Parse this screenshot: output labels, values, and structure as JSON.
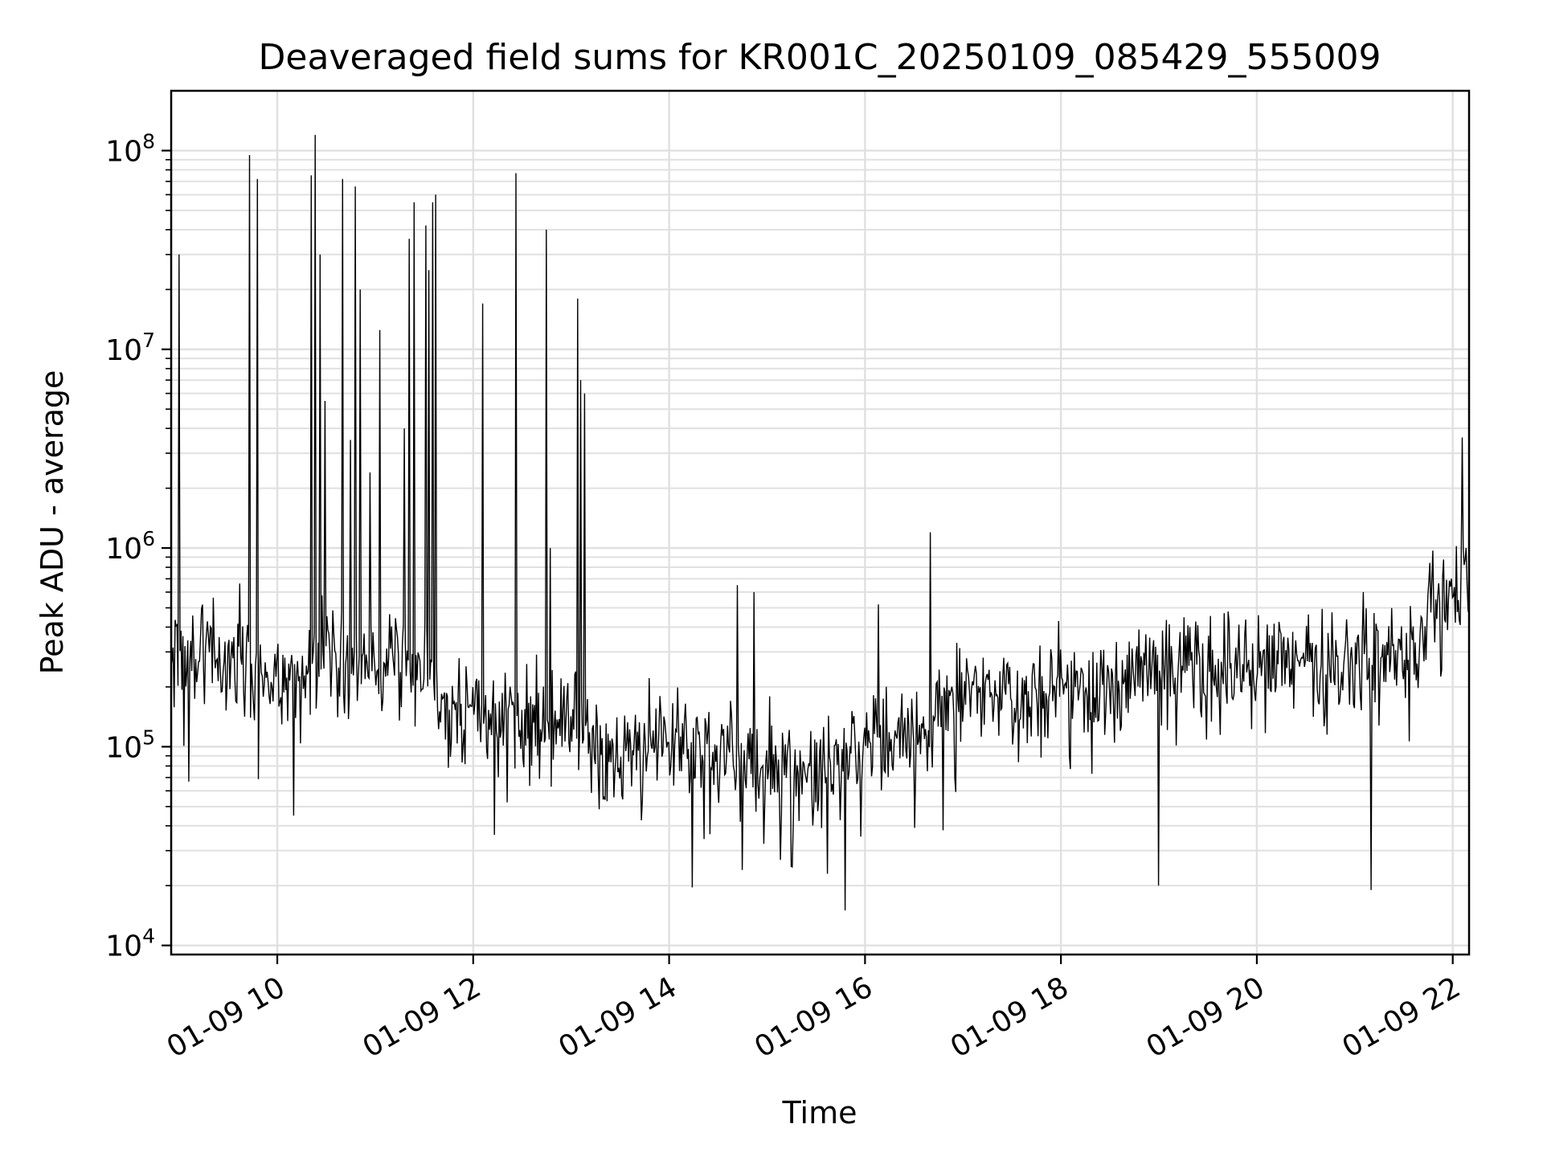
{
  "chart_data": {
    "type": "line",
    "title": "Deaveraged field sums for KR001C_20250109_085429_555009",
    "xlabel": "Time",
    "ylabel": "Peak ADU - average",
    "y_scale": "log",
    "ylim": [
      9000,
      200000000
    ],
    "xlim": [
      "2025-01-09 08:55",
      "2025-01-09 22:10"
    ],
    "grid": true,
    "line_color": "#000000",
    "grid_color": "#e0e0e0",
    "x_ticks": [
      {
        "value": "2025-01-09 10:00",
        "label": "01-09 10"
      },
      {
        "value": "2025-01-09 12:00",
        "label": "01-09 12"
      },
      {
        "value": "2025-01-09 14:00",
        "label": "01-09 14"
      },
      {
        "value": "2025-01-09 16:00",
        "label": "01-09 16"
      },
      {
        "value": "2025-01-09 18:00",
        "label": "01-09 18"
      },
      {
        "value": "2025-01-09 20:00",
        "label": "01-09 20"
      },
      {
        "value": "2025-01-09 22:00",
        "label": "01-09 22"
      }
    ],
    "y_ticks": [
      {
        "value": 10000,
        "base": "10",
        "exp": "4"
      },
      {
        "value": 100000,
        "base": "10",
        "exp": "5"
      },
      {
        "value": 1000000,
        "base": "10",
        "exp": "6"
      },
      {
        "value": 10000000,
        "base": "10",
        "exp": "7"
      },
      {
        "value": 100000000,
        "base": "10",
        "exp": "8"
      }
    ],
    "series": [
      {
        "baseline": [
          [
            "2025-01-09 08:55",
            300000
          ],
          [
            "2025-01-09 09:30",
            300000
          ],
          [
            "2025-01-09 10:00",
            200000
          ],
          [
            "2025-01-09 10:30",
            300000
          ],
          [
            "2025-01-09 11:00",
            250000
          ],
          [
            "2025-01-09 11:35",
            250000
          ],
          [
            "2025-01-09 11:40",
            150000
          ],
          [
            "2025-01-09 13:00",
            130000
          ],
          [
            "2025-01-09 13:20",
            90000
          ],
          [
            "2025-01-09 14:00",
            110000
          ],
          [
            "2025-01-09 15:00",
            85000
          ],
          [
            "2025-01-09 15:30",
            70000
          ],
          [
            "2025-01-09 16:00",
            110000
          ],
          [
            "2025-01-09 16:40",
            110000
          ],
          [
            "2025-01-09 16:45",
            180000
          ],
          [
            "2025-01-09 18:00",
            200000
          ],
          [
            "2025-01-09 19:00",
            230000
          ],
          [
            "2025-01-09 20:00",
            250000
          ],
          [
            "2025-01-09 21:40",
            280000
          ],
          [
            "2025-01-09 21:45",
            500000
          ],
          [
            "2025-01-09 22:10",
            650000
          ]
        ],
        "spikes": [
          [
            "2025-01-09 09:00",
            30000000
          ],
          [
            "2025-01-09 09:43",
            95000000
          ],
          [
            "2025-01-09 09:48",
            72000000
          ],
          [
            "2025-01-09 10:21",
            75000000
          ],
          [
            "2025-01-09 10:23",
            120000000
          ],
          [
            "2025-01-09 10:26",
            30000000
          ],
          [
            "2025-01-09 10:29",
            5500000
          ],
          [
            "2025-01-09 10:40",
            72000000
          ],
          [
            "2025-01-09 10:45",
            3500000
          ],
          [
            "2025-01-09 10:48",
            66000000
          ],
          [
            "2025-01-09 10:51",
            20000000
          ],
          [
            "2025-01-09 10:57",
            2400000
          ],
          [
            "2025-01-09 11:03",
            12500000
          ],
          [
            "2025-01-09 11:18",
            4000000
          ],
          [
            "2025-01-09 11:21",
            36000000
          ],
          [
            "2025-01-09 11:24",
            55000000
          ],
          [
            "2025-01-09 11:31",
            42000000
          ],
          [
            "2025-01-09 11:33",
            25000000
          ],
          [
            "2025-01-09 11:35",
            55000000
          ],
          [
            "2025-01-09 11:37",
            60000000
          ],
          [
            "2025-01-09 12:06",
            17000000
          ],
          [
            "2025-01-09 12:26",
            77000000
          ],
          [
            "2025-01-09 12:45",
            40000000
          ],
          [
            "2025-01-09 12:47",
            1000000
          ],
          [
            "2025-01-09 13:04",
            18000000
          ],
          [
            "2025-01-09 13:06",
            7000000
          ],
          [
            "2025-01-09 13:08",
            6000000
          ],
          [
            "2025-01-09 14:42",
            650000
          ],
          [
            "2025-01-09 14:52",
            600000
          ],
          [
            "2025-01-09 16:08",
            520000
          ],
          [
            "2025-01-09 16:40",
            1200000
          ],
          [
            "2025-01-09 21:05",
            600000
          ],
          [
            "2025-01-09 22:06",
            3600000
          ],
          [
            "2025-01-09 22:08",
            1000000
          ]
        ],
        "dips": [
          [
            "2025-01-09 10:10",
            45000
          ],
          [
            "2025-01-09 12:13",
            36000
          ],
          [
            "2025-01-09 14:45",
            24000
          ],
          [
            "2025-01-09 15:15",
            25000
          ],
          [
            "2025-01-09 15:48",
            15000
          ],
          [
            "2025-01-09 19:00",
            20000
          ],
          [
            "2025-01-09 21:10",
            19000
          ]
        ]
      }
    ]
  }
}
